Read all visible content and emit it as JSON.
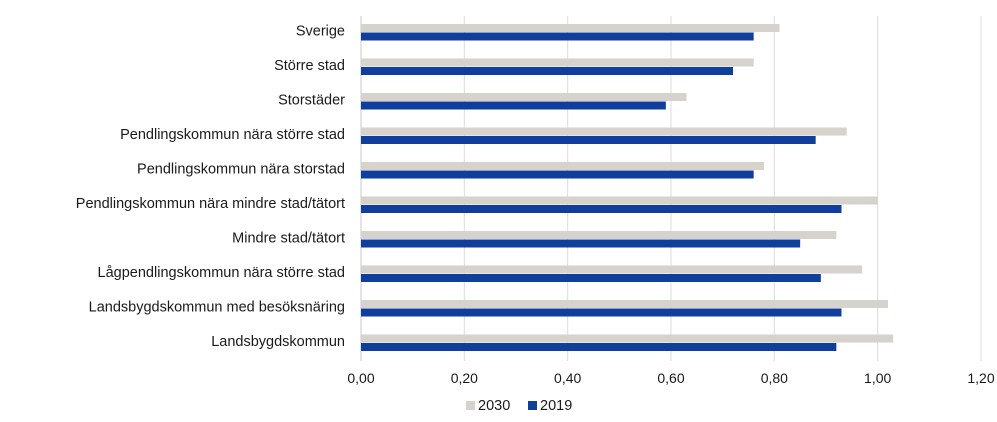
{
  "chart_data": {
    "type": "bar",
    "orientation": "horizontal",
    "categories": [
      "Sverige",
      "Större stad",
      "Storstäder",
      "Pendlingskommun nära större stad",
      "Pendlingskommun nära storstad",
      "Pendlingskommun nära mindre stad/tätort",
      "Mindre stad/tätort",
      "Lågpendlingskommun nära större stad",
      "Landsbygdskommun med besöksnäring",
      "Landsbygdskommun"
    ],
    "series": [
      {
        "name": "2030",
        "color": "#d6d2cc",
        "values": [
          0.81,
          0.76,
          0.63,
          0.94,
          0.78,
          1.0,
          0.92,
          0.97,
          1.02,
          1.03
        ]
      },
      {
        "name": "2019",
        "color": "#0f3e9c",
        "values": [
          0.76,
          0.72,
          0.59,
          0.88,
          0.76,
          0.93,
          0.85,
          0.89,
          0.93,
          0.92
        ]
      }
    ],
    "x_ticks": [
      "0,00",
      "0,20",
      "0,40",
      "0,60",
      "0,80",
      "1,00",
      "1,20"
    ],
    "xlim": [
      0,
      1.2
    ],
    "grid": true,
    "legend_position": "bottom"
  }
}
